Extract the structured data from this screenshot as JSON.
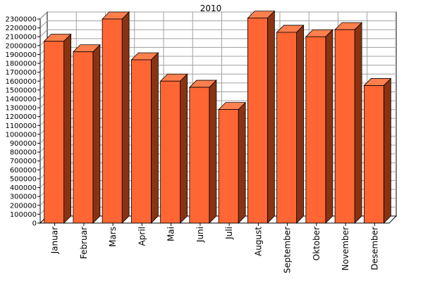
{
  "chart_data": {
    "type": "bar",
    "title": "2010",
    "xlabel": "",
    "ylabel": "",
    "categories": [
      "Januar",
      "Februar",
      "Mars",
      "April",
      "Mai",
      "Juni",
      "Juli",
      "August",
      "September",
      "Oktober",
      "November",
      "Desember"
    ],
    "values": [
      2050000,
      1930000,
      2300000,
      1840000,
      1600000,
      1530000,
      1280000,
      2310000,
      2150000,
      2100000,
      2180000,
      1550000
    ],
    "ylim": [
      0,
      2300000
    ],
    "ytick_step": 100000,
    "ytick_labels": [
      "0",
      "100000",
      "200000",
      "300000",
      "400000",
      "500000",
      "600000",
      "700000",
      "800000",
      "900000",
      "1000000",
      "1100000",
      "1200000",
      "1300000",
      "1400000",
      "1500000",
      "1600000",
      "1700000",
      "1800000",
      "1900000",
      "2000000",
      "2100000",
      "2200000",
      "2300000"
    ],
    "grid": true,
    "legend": "none",
    "style": "3d",
    "colors": {
      "bar_front": "#ff6633",
      "bar_top": "#ff7f4d",
      "bar_side": "#8a3312",
      "bar_outline": "#000000",
      "grid": "#a0a0a0",
      "wall": "#ffffff",
      "axis": "#000000"
    }
  }
}
